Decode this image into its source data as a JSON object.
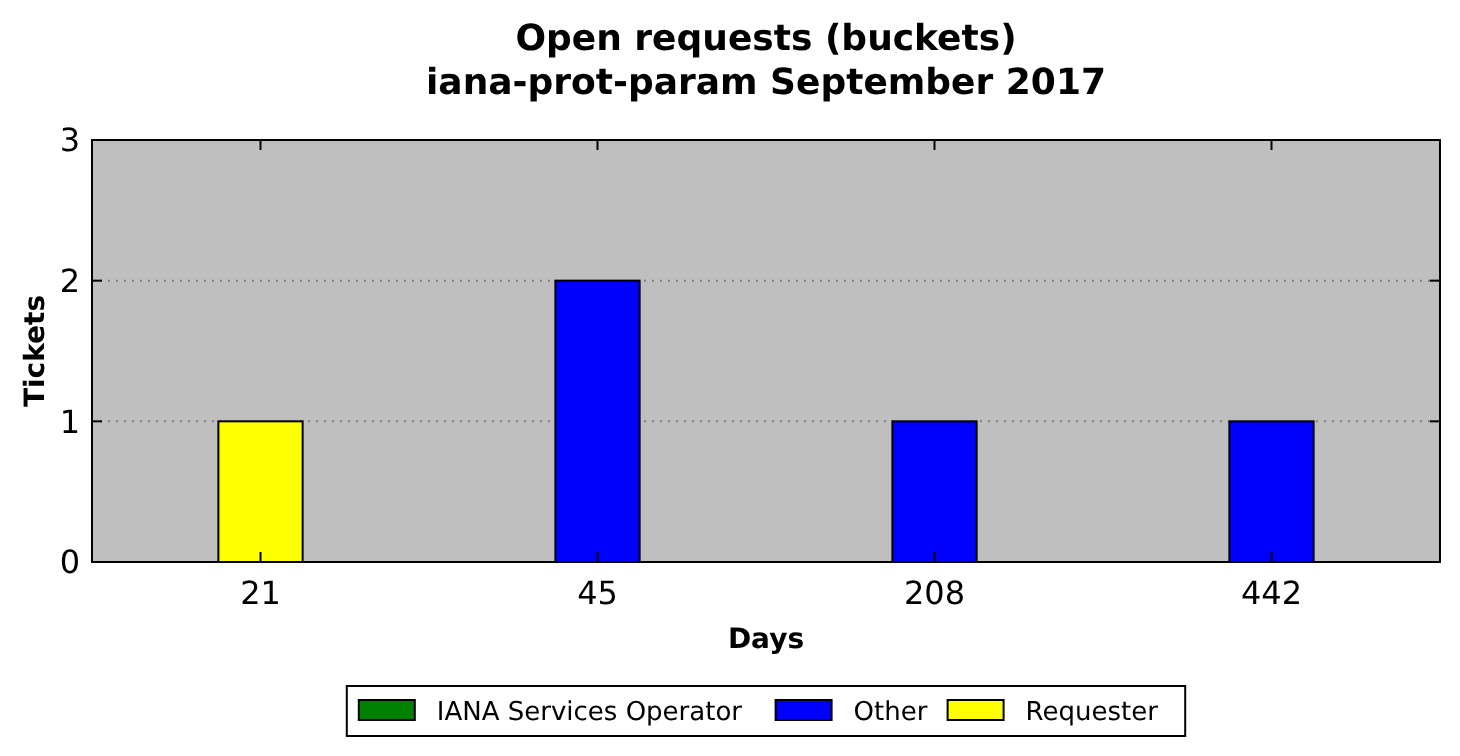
{
  "chart_data": {
    "type": "bar",
    "title": "Open requests (buckets)",
    "subtitle": "iana-prot-param September 2017",
    "xlabel": "Days",
    "ylabel": "Tickets",
    "categories": [
      "21",
      "45",
      "208",
      "442"
    ],
    "series": [
      {
        "name": "IANA Services Operator",
        "color": "#008000",
        "values": [
          0,
          0,
          0,
          0
        ]
      },
      {
        "name": "Other",
        "color": "#0000ff",
        "values": [
          0,
          2,
          1,
          1
        ]
      },
      {
        "name": "Requester",
        "color": "#ffff00",
        "values": [
          1,
          0,
          0,
          0
        ]
      }
    ],
    "stacked": true,
    "ylim": [
      0,
      3
    ],
    "yticks": [
      0,
      1,
      2,
      3
    ],
    "grid": "y",
    "legend": "bottom"
  }
}
